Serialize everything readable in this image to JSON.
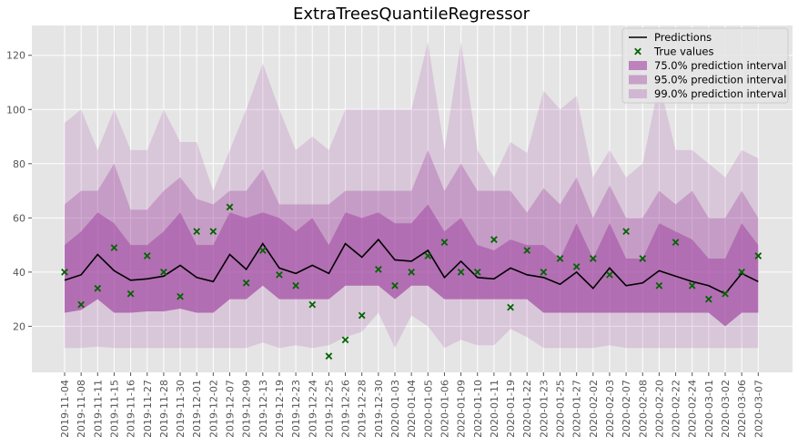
{
  "chart_data": {
    "type": "line",
    "title": "ExtraTreesQuantileRegressor",
    "xlabel": "",
    "ylabel": "",
    "ylim": [
      3,
      131
    ],
    "yticks": [
      20,
      40,
      60,
      80,
      100,
      120
    ],
    "grid": true,
    "legend_position": "top-right",
    "categories": [
      "2019-11-04",
      "2019-11-08",
      "2019-11-11",
      "2019-11-15",
      "2019-11-16",
      "2019-11-27",
      "2019-11-28",
      "2019-11-30",
      "2019-12-01",
      "2019-12-02",
      "2019-12-07",
      "2019-12-09",
      "2019-12-13",
      "2019-12-19",
      "2019-12-23",
      "2019-12-24",
      "2019-12-25",
      "2019-12-26",
      "2019-12-28",
      "2019-12-30",
      "2020-01-03",
      "2020-01-04",
      "2020-01-05",
      "2020-01-06",
      "2020-01-09",
      "2020-01-10",
      "2020-01-11",
      "2020-01-19",
      "2020-01-22",
      "2020-01-23",
      "2020-01-25",
      "2020-01-27",
      "2020-02-02",
      "2020-02-03",
      "2020-02-07",
      "2020-02-08",
      "2020-02-20",
      "2020-02-22",
      "2020-02-24",
      "2020-03-01",
      "2020-03-02",
      "2020-03-06",
      "2020-03-07"
    ],
    "series": [
      {
        "name": "Predictions",
        "kind": "line",
        "color": "#000000",
        "values": [
          37,
          39,
          46.5,
          40.5,
          37,
          37.5,
          38.5,
          42.5,
          38,
          36.5,
          46.5,
          41,
          50.5,
          41.5,
          39.5,
          42.5,
          39.5,
          50.5,
          45.5,
          52,
          44.5,
          44,
          48,
          38,
          44,
          38,
          37.5,
          41.5,
          39,
          38,
          35.5,
          40,
          34,
          41.5,
          35,
          36,
          40.5,
          38.5,
          36.5,
          35,
          32,
          39.5,
          36.5
        ]
      },
      {
        "name": "True values",
        "kind": "scatter",
        "color": "#006400",
        "values": [
          40,
          28,
          34,
          49,
          32,
          46,
          40,
          31,
          55,
          55,
          64,
          36,
          48,
          39,
          35,
          28,
          9,
          15,
          24,
          41,
          35,
          40,
          46,
          51,
          40,
          40,
          52,
          27,
          48,
          40,
          45,
          42,
          45,
          39,
          55,
          45,
          35,
          51,
          35,
          30,
          32,
          40,
          46
        ]
      },
      {
        "name": "75.0% prediction interval",
        "kind": "band",
        "color": "#a040a0",
        "opacity": 0.5,
        "lower": [
          25,
          26,
          30,
          25,
          25,
          25.5,
          25.5,
          26.5,
          25,
          25,
          30,
          30,
          35,
          30,
          30,
          30,
          30,
          35,
          35,
          35,
          30,
          35,
          35,
          30,
          30,
          30,
          30,
          30,
          30,
          25,
          25,
          25,
          25,
          25,
          25,
          25,
          25,
          25,
          25,
          25,
          20,
          25,
          25
        ],
        "upper": [
          50,
          55,
          62,
          58,
          50,
          50,
          55,
          62,
          50,
          50,
          62,
          60,
          62,
          60,
          55,
          60,
          50,
          62,
          60,
          62,
          58,
          58,
          65,
          55,
          60,
          50,
          48,
          52,
          50,
          50,
          45,
          58,
          45,
          58,
          45,
          45,
          58,
          55,
          52,
          45,
          45,
          58,
          50
        ]
      },
      {
        "name": "95.0% prediction interval",
        "kind": "band",
        "color": "#a040a0",
        "opacity": 0.32,
        "lower": [
          25,
          26,
          30,
          25,
          25,
          25.5,
          25.5,
          26.5,
          25,
          25,
          30,
          30,
          35,
          30,
          30,
          30,
          30,
          35,
          35,
          35,
          30,
          35,
          35,
          30,
          30,
          30,
          30,
          30,
          30,
          25,
          25,
          25,
          25,
          25,
          25,
          25,
          25,
          25,
          25,
          25,
          20,
          25,
          25
        ],
        "upper": [
          65,
          70,
          70,
          80,
          63,
          63,
          70,
          75,
          67,
          65,
          70,
          70,
          78,
          65,
          65,
          65,
          65,
          70,
          70,
          70,
          70,
          70,
          85,
          70,
          80,
          70,
          70,
          70,
          62,
          71,
          65,
          75,
          60,
          72,
          60,
          60,
          70,
          65,
          70,
          60,
          60,
          70,
          60
        ]
      },
      {
        "name": "99.0% prediction interval",
        "kind": "band",
        "color": "#a040a0",
        "opacity": 0.18,
        "lower": [
          12,
          12,
          12.5,
          12,
          12,
          12,
          12,
          12,
          12,
          12,
          12,
          12,
          14,
          12,
          13,
          12,
          13,
          16,
          18,
          25,
          12,
          24,
          20,
          12,
          15,
          13,
          13,
          19,
          16,
          12,
          12,
          12,
          12,
          13,
          12,
          12,
          12,
          12,
          12,
          12,
          12,
          12,
          12
        ],
        "upper": [
          95,
          100,
          85,
          100,
          85,
          85,
          100,
          88,
          88,
          70,
          85,
          100,
          117,
          100,
          85,
          90,
          85,
          100,
          100,
          100,
          100,
          100,
          125,
          85,
          125,
          85,
          75,
          88,
          84,
          107,
          100,
          105,
          75,
          85,
          75,
          80,
          110,
          85,
          85,
          80,
          75,
          85,
          82
        ]
      }
    ]
  }
}
